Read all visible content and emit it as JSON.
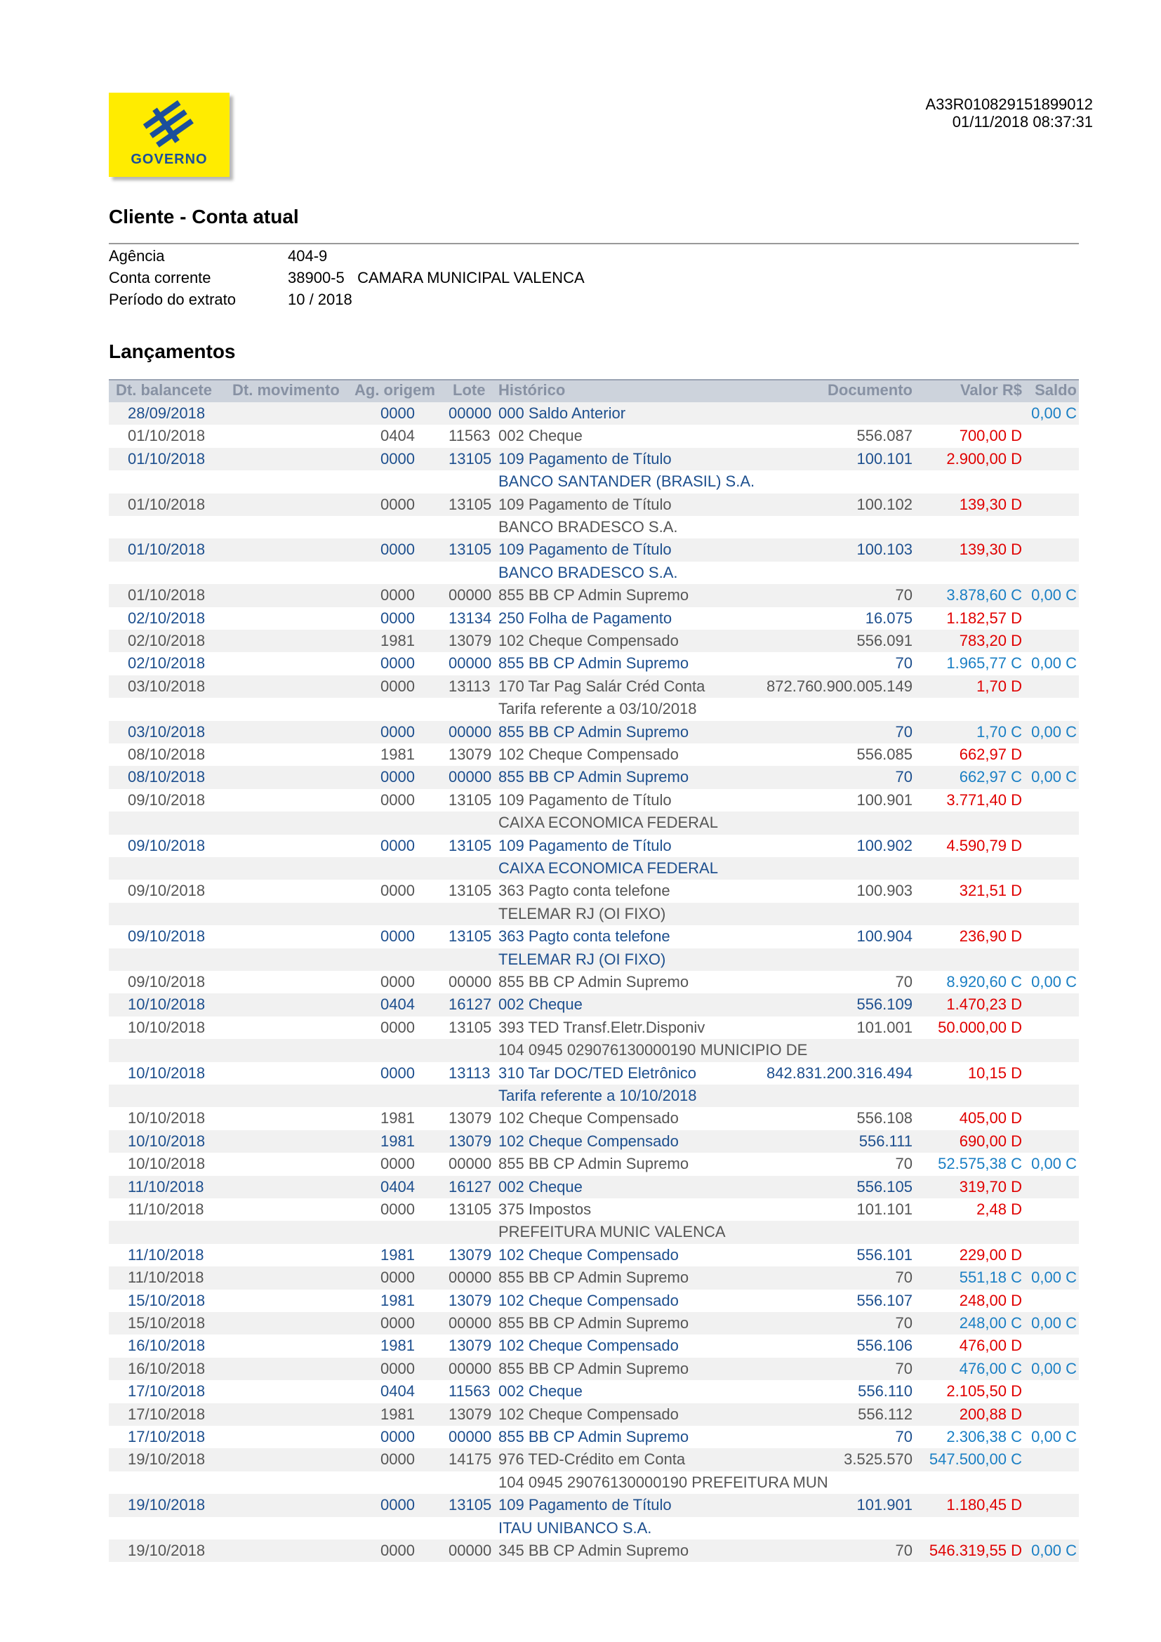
{
  "header": {
    "logo_text": "GOVERNO",
    "code": "A33R010829151899012",
    "datetime": "01/11/2018 08:37:31"
  },
  "client": {
    "title": "Cliente - Conta atual",
    "fields": [
      {
        "label": "Agência",
        "value": "404-9"
      },
      {
        "label": "Conta corrente",
        "value": "38900-5   CAMARA MUNICIPAL VALENCA"
      },
      {
        "label": "Período do extrato",
        "value": "10 / 2018"
      }
    ]
  },
  "entries": {
    "title": "Lançamentos",
    "columns": [
      "Dt. balancete",
      "Dt. movimento",
      "Ag. origem",
      "Lote",
      "Histórico",
      "Documento",
      "Valor R$",
      "Saldo"
    ],
    "colors": {
      "text_a": "#1d4f8e",
      "text_b": "#555555",
      "debit": "#e00000",
      "credit": "#1a7fc4",
      "row_bg": "#f1f1f1",
      "header_bg": "#cdd3dc",
      "header_text": "#8791a3"
    },
    "rows": [
      {
        "date": "28/09/2018",
        "ag": "0000",
        "lote": "00000",
        "hist": "000 Saldo Anterior",
        "balance": "0,00 C"
      },
      {
        "date": "01/10/2018",
        "ag": "0404",
        "lote": "11563",
        "hist": "002 Cheque",
        "doc": "556.087",
        "value": "700,00 D"
      },
      {
        "date": "01/10/2018",
        "ag": "0000",
        "lote": "13105",
        "hist": "109 Pagamento de Título",
        "doc": "100.101",
        "value": "2.900,00 D",
        "note": "BANCO SANTANDER (BRASIL) S.A."
      },
      {
        "date": "01/10/2018",
        "ag": "0000",
        "lote": "13105",
        "hist": "109 Pagamento de Título",
        "doc": "100.102",
        "value": "139,30 D",
        "note": "BANCO BRADESCO S.A."
      },
      {
        "date": "01/10/2018",
        "ag": "0000",
        "lote": "13105",
        "hist": "109 Pagamento de Título",
        "doc": "100.103",
        "value": "139,30 D",
        "note": "BANCO BRADESCO S.A."
      },
      {
        "date": "01/10/2018",
        "ag": "0000",
        "lote": "00000",
        "hist": "855 BB CP Admin Supremo",
        "doc": "70",
        "value": "3.878,60 C",
        "balance": "0,00 C"
      },
      {
        "date": "02/10/2018",
        "ag": "0000",
        "lote": "13134",
        "hist": "250 Folha de Pagamento",
        "doc": "16.075",
        "value": "1.182,57 D"
      },
      {
        "date": "02/10/2018",
        "ag": "1981",
        "lote": "13079",
        "hist": "102 Cheque Compensado",
        "doc": "556.091",
        "value": "783,20 D"
      },
      {
        "date": "02/10/2018",
        "ag": "0000",
        "lote": "00000",
        "hist": "855 BB CP Admin Supremo",
        "doc": "70",
        "value": "1.965,77 C",
        "balance": "0,00 C"
      },
      {
        "date": "03/10/2018",
        "ag": "0000",
        "lote": "13113",
        "hist": "170 Tar Pag Salár Créd Conta",
        "doc": "872.760.900.005.149",
        "value": "1,70 D",
        "note": "Tarifa referente a 03/10/2018"
      },
      {
        "date": "03/10/2018",
        "ag": "0000",
        "lote": "00000",
        "hist": "855 BB CP Admin Supremo",
        "doc": "70",
        "value": "1,70 C",
        "balance": "0,00 C"
      },
      {
        "date": "08/10/2018",
        "ag": "1981",
        "lote": "13079",
        "hist": "102 Cheque Compensado",
        "doc": "556.085",
        "value": "662,97 D"
      },
      {
        "date": "08/10/2018",
        "ag": "0000",
        "lote": "00000",
        "hist": "855 BB CP Admin Supremo",
        "doc": "70",
        "value": "662,97 C",
        "balance": "0,00 C"
      },
      {
        "date": "09/10/2018",
        "ag": "0000",
        "lote": "13105",
        "hist": "109 Pagamento de Título",
        "doc": "100.901",
        "value": "3.771,40 D",
        "note": "CAIXA ECONOMICA FEDERAL"
      },
      {
        "date": "09/10/2018",
        "ag": "0000",
        "lote": "13105",
        "hist": "109 Pagamento de Título",
        "doc": "100.902",
        "value": "4.590,79 D",
        "note": "CAIXA ECONOMICA FEDERAL"
      },
      {
        "date": "09/10/2018",
        "ag": "0000",
        "lote": "13105",
        "hist": "363 Pagto conta telefone",
        "doc": "100.903",
        "value": "321,51 D",
        "note": "TELEMAR RJ (OI FIXO)"
      },
      {
        "date": "09/10/2018",
        "ag": "0000",
        "lote": "13105",
        "hist": "363 Pagto conta telefone",
        "doc": "100.904",
        "value": "236,90 D",
        "note": "TELEMAR RJ (OI FIXO)"
      },
      {
        "date": "09/10/2018",
        "ag": "0000",
        "lote": "00000",
        "hist": "855 BB CP Admin Supremo",
        "doc": "70",
        "value": "8.920,60 C",
        "balance": "0,00 C"
      },
      {
        "date": "10/10/2018",
        "ag": "0404",
        "lote": "16127",
        "hist": "002 Cheque",
        "doc": "556.109",
        "value": "1.470,23 D"
      },
      {
        "date": "10/10/2018",
        "ag": "0000",
        "lote": "13105",
        "hist": "393 TED Transf.Eletr.Disponiv",
        "doc": "101.001",
        "value": "50.000,00 D",
        "note": "104 0945 029076130000190 MUNICIPIO DE"
      },
      {
        "date": "10/10/2018",
        "ag": "0000",
        "lote": "13113",
        "hist": "310 Tar DOC/TED Eletrônico",
        "doc": "842.831.200.316.494",
        "value": "10,15 D",
        "note": "Tarifa referente a 10/10/2018"
      },
      {
        "date": "10/10/2018",
        "ag": "1981",
        "lote": "13079",
        "hist": "102 Cheque Compensado",
        "doc": "556.108",
        "value": "405,00 D"
      },
      {
        "date": "10/10/2018",
        "ag": "1981",
        "lote": "13079",
        "hist": "102 Cheque Compensado",
        "doc": "556.111",
        "value": "690,00 D"
      },
      {
        "date": "10/10/2018",
        "ag": "0000",
        "lote": "00000",
        "hist": "855 BB CP Admin Supremo",
        "doc": "70",
        "value": "52.575,38 C",
        "balance": "0,00 C"
      },
      {
        "date": "11/10/2018",
        "ag": "0404",
        "lote": "16127",
        "hist": "002 Cheque",
        "doc": "556.105",
        "value": "319,70 D"
      },
      {
        "date": "11/10/2018",
        "ag": "0000",
        "lote": "13105",
        "hist": "375 Impostos",
        "doc": "101.101",
        "value": "2,48 D",
        "note": "PREFEITURA MUNIC VALENCA"
      },
      {
        "date": "11/10/2018",
        "ag": "1981",
        "lote": "13079",
        "hist": "102 Cheque Compensado",
        "doc": "556.101",
        "value": "229,00 D"
      },
      {
        "date": "11/10/2018",
        "ag": "0000",
        "lote": "00000",
        "hist": "855 BB CP Admin Supremo",
        "doc": "70",
        "value": "551,18 C",
        "balance": "0,00 C"
      },
      {
        "date": "15/10/2018",
        "ag": "1981",
        "lote": "13079",
        "hist": "102 Cheque Compensado",
        "doc": "556.107",
        "value": "248,00 D"
      },
      {
        "date": "15/10/2018",
        "ag": "0000",
        "lote": "00000",
        "hist": "855 BB CP Admin Supremo",
        "doc": "70",
        "value": "248,00 C",
        "balance": "0,00 C"
      },
      {
        "date": "16/10/2018",
        "ag": "1981",
        "lote": "13079",
        "hist": "102 Cheque Compensado",
        "doc": "556.106",
        "value": "476,00 D"
      },
      {
        "date": "16/10/2018",
        "ag": "0000",
        "lote": "00000",
        "hist": "855 BB CP Admin Supremo",
        "doc": "70",
        "value": "476,00 C",
        "balance": "0,00 C"
      },
      {
        "date": "17/10/2018",
        "ag": "0404",
        "lote": "11563",
        "hist": "002 Cheque",
        "doc": "556.110",
        "value": "2.105,50 D"
      },
      {
        "date": "17/10/2018",
        "ag": "1981",
        "lote": "13079",
        "hist": "102 Cheque Compensado",
        "doc": "556.112",
        "value": "200,88 D"
      },
      {
        "date": "17/10/2018",
        "ag": "0000",
        "lote": "00000",
        "hist": "855 BB CP Admin Supremo",
        "doc": "70",
        "value": "2.306,38 C",
        "balance": "0,00 C"
      },
      {
        "date": "19/10/2018",
        "ag": "0000",
        "lote": "14175",
        "hist": "976 TED-Crédito em Conta",
        "doc": "3.525.570",
        "value": "547.500,00 C",
        "note": "104 0945 29076130000190 PREFEITURA MUN"
      },
      {
        "date": "19/10/2018",
        "ag": "0000",
        "lote": "13105",
        "hist": "109 Pagamento de Título",
        "doc": "101.901",
        "value": "1.180,45 D",
        "note": "ITAU UNIBANCO S.A."
      },
      {
        "date": "19/10/2018",
        "ag": "0000",
        "lote": "00000",
        "hist": "345 BB CP Admin Supremo",
        "doc": "70",
        "value": "546.319,55 D",
        "balance": "0,00 C"
      }
    ]
  }
}
